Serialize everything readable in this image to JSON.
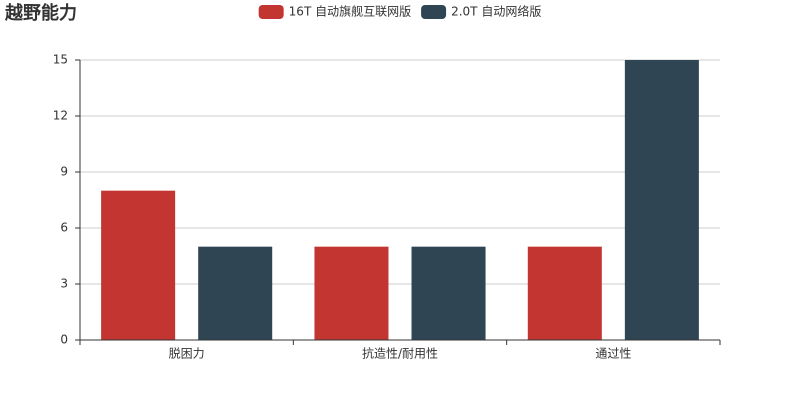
{
  "chart_data": {
    "type": "bar",
    "title": "越野能力",
    "categories": [
      "脱困力",
      "抗造性/耐用性",
      "通过性"
    ],
    "series": [
      {
        "name": "16T 自动旗舰互联网版",
        "color": "#c23531",
        "values": [
          8,
          5,
          5
        ]
      },
      {
        "name": "2.0T 自动网络版",
        "color": "#2f4554",
        "values": [
          5,
          5,
          15
        ]
      }
    ],
    "ylim": [
      0,
      15
    ],
    "yticks": [
      0,
      3,
      6,
      9,
      12,
      15
    ],
    "grid": true,
    "legend": "top"
  }
}
